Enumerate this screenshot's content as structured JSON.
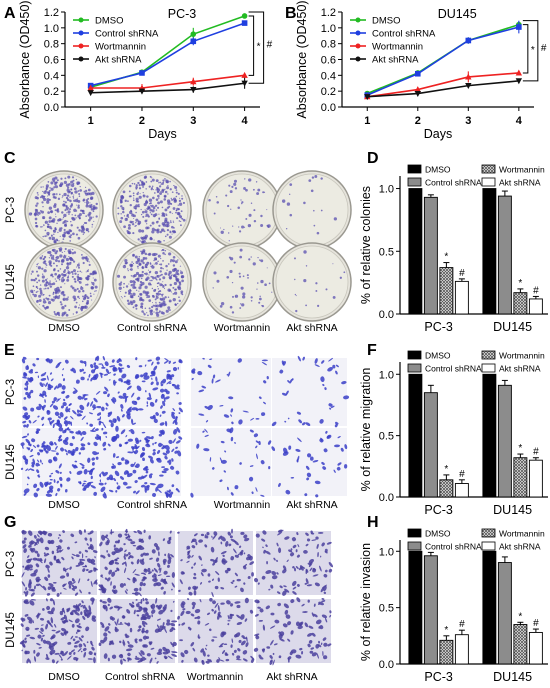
{
  "panel_letters": [
    "A",
    "B",
    "C",
    "D",
    "E",
    "F",
    "G",
    "H"
  ],
  "treatments": [
    "DMSO",
    "Control shRNA",
    "Wortmannin",
    "Akt shRNA"
  ],
  "cell_lines": [
    "PC-3",
    "DU145"
  ],
  "colors": {
    "DMSO": "#22bb22",
    "Control shRNA": "#1f3fe0",
    "Wortmannin": "#ee2222",
    "Akt shRNA": "#111111",
    "bar_DMSO": "#000000",
    "bar_Control": "#8c8c8c",
    "plate_stain": "#5a4fb0",
    "transwell_stain": "#3b3fc8",
    "invasion_stain": "#4a3f9e"
  },
  "image_panels": {
    "C": {
      "stain_density": [
        0.95,
        0.95,
        0.15,
        0.05
      ]
    },
    "E": {
      "stain_density": [
        0.9,
        0.85,
        0.2,
        0.2
      ]
    },
    "G": {
      "stain_density": [
        0.9,
        0.85,
        0.55,
        0.5
      ]
    }
  },
  "chart_data": [
    {
      "panel": "A",
      "type": "line",
      "title": "PC-3",
      "xlabel": "Days",
      "ylabel": "Absorbance (OD450)",
      "x": [
        1,
        2,
        3,
        4
      ],
      "xlim": [
        0.5,
        4.3
      ],
      "ylim": [
        0,
        1.2
      ],
      "yticks": [
        "0.0",
        "0.2",
        "0.4",
        "0.6",
        "0.8",
        "1.0",
        "1.2"
      ],
      "legend": "top-left",
      "series": [
        {
          "name": "DMSO",
          "values": [
            0.25,
            0.44,
            0.92,
            1.15
          ],
          "err": [
            0.02,
            0.02,
            0.08,
            0.03
          ]
        },
        {
          "name": "Control shRNA",
          "values": [
            0.27,
            0.43,
            0.83,
            1.06
          ],
          "err": [
            0.02,
            0.02,
            0.05,
            0.03
          ]
        },
        {
          "name": "Wortmannin",
          "values": [
            0.24,
            0.24,
            0.32,
            0.4
          ],
          "err": [
            0.03,
            0.05,
            0.05,
            0.02
          ]
        },
        {
          "name": "Akt shRNA",
          "values": [
            0.18,
            0.2,
            0.22,
            0.3
          ],
          "err": [
            0.02,
            0.03,
            0.04,
            0.07
          ]
        }
      ],
      "annotations": [
        "*",
        "#"
      ]
    },
    {
      "panel": "B",
      "type": "line",
      "title": "DU145",
      "xlabel": "Days",
      "ylabel": "Absorbance (OD450)",
      "x": [
        1,
        2,
        3,
        4
      ],
      "xlim": [
        0.5,
        4.3
      ],
      "ylim": [
        0,
        1.2
      ],
      "yticks": [
        "0.0",
        "0.2",
        "0.4",
        "0.6",
        "0.8",
        "1.0",
        "1.2"
      ],
      "legend": "top-left",
      "series": [
        {
          "name": "DMSO",
          "values": [
            0.17,
            0.43,
            0.84,
            1.04
          ],
          "err": [
            0.02,
            0.02,
            0.04,
            0.04
          ]
        },
        {
          "name": "Control shRNA",
          "values": [
            0.15,
            0.42,
            0.84,
            1.01
          ],
          "err": [
            0.02,
            0.02,
            0.04,
            0.08
          ]
        },
        {
          "name": "Wortmannin",
          "values": [
            0.13,
            0.22,
            0.38,
            0.43
          ],
          "err": [
            0.02,
            0.03,
            0.07,
            0.02
          ]
        },
        {
          "name": "Akt shRNA",
          "values": [
            0.13,
            0.17,
            0.27,
            0.33
          ],
          "err": [
            0.02,
            0.02,
            0.02,
            0.02
          ]
        }
      ],
      "annotations": [
        "*",
        "#"
      ]
    },
    {
      "panel": "D",
      "type": "bar",
      "ylabel": "% of relative colonies",
      "categories": [
        "PC-3",
        "DU145"
      ],
      "ylim": [
        0,
        1.1
      ],
      "yticks": [
        "0.0",
        "0.5",
        "1.0"
      ],
      "legend": "top",
      "series": [
        {
          "name": "DMSO",
          "values": [
            1.0,
            1.0
          ],
          "err": [
            0,
            0
          ]
        },
        {
          "name": "Control shRNA",
          "values": [
            0.93,
            0.94
          ],
          "err": [
            0.02,
            0.04
          ]
        },
        {
          "name": "Wortmannin",
          "values": [
            0.37,
            0.17
          ],
          "err": [
            0.04,
            0.03
          ]
        },
        {
          "name": "Akt shRNA",
          "values": [
            0.26,
            0.12
          ],
          "err": [
            0.02,
            0.02
          ]
        }
      ],
      "annotations": {
        "Wortmannin": "*",
        "Akt shRNA": "#"
      }
    },
    {
      "panel": "F",
      "type": "bar",
      "ylabel": "% of relative migration",
      "categories": [
        "PC-3",
        "DU145"
      ],
      "ylim": [
        0,
        1.1
      ],
      "yticks": [
        "0.0",
        "0.5",
        "1.0"
      ],
      "legend": "top",
      "series": [
        {
          "name": "DMSO",
          "values": [
            1.0,
            1.0
          ],
          "err": [
            0,
            0
          ]
        },
        {
          "name": "Control shRNA",
          "values": [
            0.85,
            0.91
          ],
          "err": [
            0.06,
            0.04
          ]
        },
        {
          "name": "Wortmannin",
          "values": [
            0.14,
            0.32
          ],
          "err": [
            0.04,
            0.03
          ]
        },
        {
          "name": "Akt shRNA",
          "values": [
            0.11,
            0.3
          ],
          "err": [
            0.03,
            0.02
          ]
        }
      ],
      "annotations": {
        "Wortmannin": "*",
        "Akt shRNA": "#"
      }
    },
    {
      "panel": "H",
      "type": "bar",
      "ylabel": "% of relative invasion",
      "categories": [
        "PC-3",
        "DU145"
      ],
      "ylim": [
        0,
        1.1
      ],
      "yticks": [
        "0.0",
        "0.5",
        "1.0"
      ],
      "legend": "top",
      "series": [
        {
          "name": "DMSO",
          "values": [
            1.0,
            1.0
          ],
          "err": [
            0,
            0
          ]
        },
        {
          "name": "Control shRNA",
          "values": [
            0.96,
            0.9
          ],
          "err": [
            0.03,
            0.05
          ]
        },
        {
          "name": "Wortmannin",
          "values": [
            0.21,
            0.35
          ],
          "err": [
            0.04,
            0.02
          ]
        },
        {
          "name": "Akt shRNA",
          "values": [
            0.26,
            0.28
          ],
          "err": [
            0.04,
            0.03
          ]
        }
      ],
      "annotations": {
        "Wortmannin": "*",
        "Akt shRNA": "#"
      }
    }
  ]
}
